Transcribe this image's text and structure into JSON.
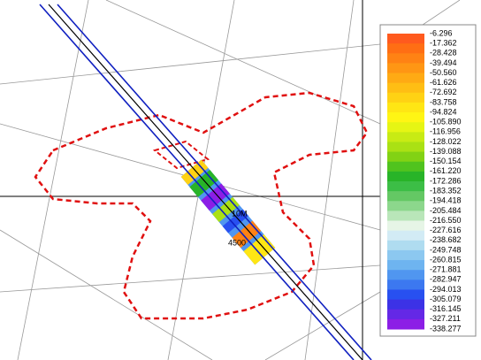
{
  "map": {
    "labels": [
      "10M",
      "4500"
    ]
  },
  "legend": {
    "entries": [
      {
        "label": "-6.296",
        "color": "#ff5a1e"
      },
      {
        "label": "-17.362",
        "color": "#ff6e14"
      },
      {
        "label": "-28.428",
        "color": "#ff8214"
      },
      {
        "label": "-39.494",
        "color": "#ff9614"
      },
      {
        "label": "-50.560",
        "color": "#ffaa14"
      },
      {
        "label": "-61.626",
        "color": "#ffbe14"
      },
      {
        "label": "-72.692",
        "color": "#ffd214"
      },
      {
        "label": "-83.758",
        "color": "#ffe614"
      },
      {
        "label": "-94.824",
        "color": "#fff514"
      },
      {
        "label": "-105.890",
        "color": "#e6f514"
      },
      {
        "label": "-116.956",
        "color": "#c8eb14"
      },
      {
        "label": "-128.022",
        "color": "#aae114"
      },
      {
        "label": "-139.088",
        "color": "#82d214"
      },
      {
        "label": "-150.154",
        "color": "#50c31e"
      },
      {
        "label": "-161.220",
        "color": "#28b428"
      },
      {
        "label": "-172.286",
        "color": "#3cbe46"
      },
      {
        "label": "-183.352",
        "color": "#64c864"
      },
      {
        "label": "-194.418",
        "color": "#8cd78c"
      },
      {
        "label": "-205.484",
        "color": "#b9e6b9"
      },
      {
        "label": "-216.550",
        "color": "#e6f5e6"
      },
      {
        "label": "-227.616",
        "color": "#d2ebf5"
      },
      {
        "label": "-238.682",
        "color": "#afdcf0"
      },
      {
        "label": "-249.748",
        "color": "#8cc8f0"
      },
      {
        "label": "-260.815",
        "color": "#6eb4f0"
      },
      {
        "label": "-271.881",
        "color": "#5096f0"
      },
      {
        "label": "-282.947",
        "color": "#3c78f0"
      },
      {
        "label": "-294.013",
        "color": "#2850f0"
      },
      {
        "label": "-305.079",
        "color": "#3c32e6"
      },
      {
        "label": "-316.145",
        "color": "#6428e6"
      },
      {
        "label": "-327.211",
        "color": "#8c1ee6"
      },
      {
        "label": "-338.277",
        "color": "#a014e6"
      }
    ]
  }
}
